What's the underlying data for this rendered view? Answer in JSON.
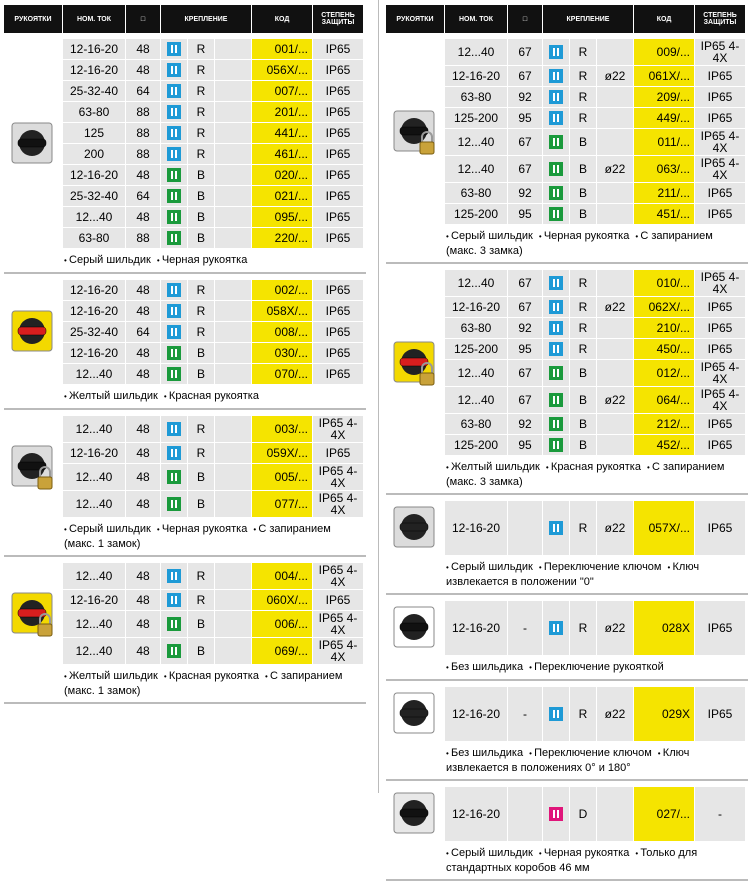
{
  "header": [
    "РУКОЯТКИ",
    "НОМ. ТОК",
    "□",
    "КРЕПЛЕНИЕ",
    "КОД",
    "СТЕПЕНЬ ЗАЩИТЫ"
  ],
  "columns": [
    [
      {
        "plate": "#dcdcdc",
        "handle": "#111111",
        "lock": false,
        "notes": [
          "Серый шильдик",
          "Черная рукоятка"
        ],
        "rows": [
          {
            "current": "12-16-20",
            "size": "48",
            "icon": "#1e9ad6",
            "mount": "R",
            "code": "001/...",
            "protection": "IP65"
          },
          {
            "current": "12-16-20",
            "size": "48",
            "icon": "#1e9ad6",
            "mount": "R",
            "code": "056X/...",
            "protection": "IP65"
          },
          {
            "current": "25-32-40",
            "size": "64",
            "icon": "#1e9ad6",
            "mount": "R",
            "code": "007/...",
            "protection": "IP65"
          },
          {
            "current": "63-80",
            "size": "88",
            "icon": "#1e9ad6",
            "mount": "R",
            "code": "201/...",
            "protection": "IP65"
          },
          {
            "current": "125",
            "size": "88",
            "icon": "#1e9ad6",
            "mount": "R",
            "code": "441/...",
            "protection": "IP65"
          },
          {
            "current": "200",
            "size": "88",
            "icon": "#1e9ad6",
            "mount": "R",
            "code": "461/...",
            "protection": "IP65"
          },
          {
            "current": "12-16-20",
            "size": "48",
            "icon": "#1a9a3c",
            "mount": "B",
            "code": "020/...",
            "protection": "IP65"
          },
          {
            "current": "25-32-40",
            "size": "64",
            "icon": "#1a9a3c",
            "mount": "B",
            "code": "021/...",
            "protection": "IP65"
          },
          {
            "current": "12...40",
            "size": "48",
            "icon": "#1a9a3c",
            "mount": "B",
            "code": "095/...",
            "protection": "IP65"
          },
          {
            "current": "63-80",
            "size": "88",
            "icon": "#1a9a3c",
            "mount": "B",
            "code": "220/...",
            "protection": "IP65"
          }
        ]
      },
      {
        "plate": "#f3d900",
        "handle": "#d81e1e",
        "lock": false,
        "notes": [
          "Желтый шильдик",
          "Красная рукоятка"
        ],
        "rows": [
          {
            "current": "12-16-20",
            "size": "48",
            "icon": "#1e9ad6",
            "mount": "R",
            "code": "002/...",
            "protection": "IP65"
          },
          {
            "current": "12-16-20",
            "size": "48",
            "icon": "#1e9ad6",
            "mount": "R",
            "code": "058X/...",
            "protection": "IP65"
          },
          {
            "current": "25-32-40",
            "size": "64",
            "icon": "#1e9ad6",
            "mount": "R",
            "code": "008/...",
            "protection": "IP65"
          },
          {
            "current": "12-16-20",
            "size": "48",
            "icon": "#1a9a3c",
            "mount": "B",
            "code": "030/...",
            "protection": "IP65"
          },
          {
            "current": "12...40",
            "size": "48",
            "icon": "#1a9a3c",
            "mount": "B",
            "code": "070/...",
            "protection": "IP65"
          }
        ]
      },
      {
        "plate": "#dcdcdc",
        "handle": "#111111",
        "lock": true,
        "notes": [
          "Серый шильдик",
          "Черная рукоятка",
          "С запиранием (макс. 1 замок)"
        ],
        "rows": [
          {
            "current": "12...40",
            "size": "48",
            "icon": "#1e9ad6",
            "mount": "R",
            "code": "003/...",
            "protection": "IP65 4-4X"
          },
          {
            "current": "12-16-20",
            "size": "48",
            "icon": "#1e9ad6",
            "mount": "R",
            "code": "059X/...",
            "protection": "IP65"
          },
          {
            "current": "12...40",
            "size": "48",
            "icon": "#1a9a3c",
            "mount": "B",
            "code": "005/...",
            "protection": "IP65 4-4X"
          },
          {
            "current": "12...40",
            "size": "48",
            "icon": "#1a9a3c",
            "mount": "B",
            "code": "077/...",
            "protection": "IP65 4-4X"
          }
        ]
      },
      {
        "plate": "#f3d900",
        "handle": "#d81e1e",
        "lock": true,
        "notes": [
          "Желтый шильдик",
          "Красная рукоятка",
          "С запиранием (макс. 1 замок)"
        ],
        "rows": [
          {
            "current": "12...40",
            "size": "48",
            "icon": "#1e9ad6",
            "mount": "R",
            "code": "004/...",
            "protection": "IP65 4-4X"
          },
          {
            "current": "12-16-20",
            "size": "48",
            "icon": "#1e9ad6",
            "mount": "R",
            "code": "060X/...",
            "protection": "IP65"
          },
          {
            "current": "12...40",
            "size": "48",
            "icon": "#1a9a3c",
            "mount": "B",
            "code": "006/...",
            "protection": "IP65 4-4X"
          },
          {
            "current": "12...40",
            "size": "48",
            "icon": "#1a9a3c",
            "mount": "B",
            "code": "069/...",
            "protection": "IP65 4-4X"
          }
        ]
      }
    ],
    [
      {
        "plate": "#dcdcdc",
        "handle": "#111111",
        "lock": true,
        "notes": [
          "Серый шильдик",
          "Черная рукоятка",
          "С запиранием (макс. 3 замка)"
        ],
        "rows": [
          {
            "current": "12...40",
            "size": "67",
            "icon": "#1e9ad6",
            "mount": "R",
            "code": "009/...",
            "protection": "IP65 4-4X"
          },
          {
            "current": "12-16-20",
            "size": "67",
            "icon": "#1e9ad6",
            "mount": "R",
            "extra": "ø22",
            "code": "061X/...",
            "protection": "IP65"
          },
          {
            "current": "63-80",
            "size": "92",
            "icon": "#1e9ad6",
            "mount": "R",
            "code": "209/...",
            "protection": "IP65"
          },
          {
            "current": "125-200",
            "size": "95",
            "icon": "#1e9ad6",
            "mount": "R",
            "code": "449/...",
            "protection": "IP65"
          },
          {
            "current": "12...40",
            "size": "67",
            "icon": "#1a9a3c",
            "mount": "B",
            "code": "011/...",
            "protection": "IP65 4-4X"
          },
          {
            "current": "12...40",
            "size": "67",
            "icon": "#1a9a3c",
            "mount": "B",
            "extra": "ø22",
            "code": "063/...",
            "protection": "IP65 4-4X"
          },
          {
            "current": "63-80",
            "size": "92",
            "icon": "#1a9a3c",
            "mount": "B",
            "code": "211/...",
            "protection": "IP65"
          },
          {
            "current": "125-200",
            "size": "95",
            "icon": "#1a9a3c",
            "mount": "B",
            "code": "451/...",
            "protection": "IP65"
          }
        ]
      },
      {
        "plate": "#f3d900",
        "handle": "#d81e1e",
        "lock": true,
        "notes": [
          "Желтый шильдик",
          "Красная рукоятка",
          "С запиранием (макс. 3 замка)"
        ],
        "rows": [
          {
            "current": "12...40",
            "size": "67",
            "icon": "#1e9ad6",
            "mount": "R",
            "code": "010/...",
            "protection": "IP65 4-4X"
          },
          {
            "current": "12-16-20",
            "size": "67",
            "icon": "#1e9ad6",
            "mount": "R",
            "extra": "ø22",
            "code": "062X/...",
            "protection": "IP65"
          },
          {
            "current": "63-80",
            "size": "92",
            "icon": "#1e9ad6",
            "mount": "R",
            "code": "210/...",
            "protection": "IP65"
          },
          {
            "current": "125-200",
            "size": "95",
            "icon": "#1e9ad6",
            "mount": "R",
            "code": "450/...",
            "protection": "IP65"
          },
          {
            "current": "12...40",
            "size": "67",
            "icon": "#1a9a3c",
            "mount": "B",
            "code": "012/...",
            "protection": "IP65 4-4X"
          },
          {
            "current": "12...40",
            "size": "67",
            "icon": "#1a9a3c",
            "mount": "B",
            "extra": "ø22",
            "code": "064/...",
            "protection": "IP65 4-4X"
          },
          {
            "current": "63-80",
            "size": "92",
            "icon": "#1a9a3c",
            "mount": "B",
            "code": "212/...",
            "protection": "IP65"
          },
          {
            "current": "125-200",
            "size": "95",
            "icon": "#1a9a3c",
            "mount": "B",
            "code": "452/...",
            "protection": "IP65"
          }
        ]
      },
      {
        "plate": "#dcdcdc",
        "handle": "#222222",
        "lock": false,
        "notes": [
          "Серый шильдик",
          "Переключение ключом",
          "Ключ извлекается в положении \"0\""
        ],
        "rows": [
          {
            "current": "12-16-20",
            "icon": "#1e9ad6",
            "mount": "R",
            "extra": "ø22",
            "code": "057X/...",
            "protection": "IP65"
          }
        ]
      },
      {
        "plate": "#ffffff",
        "handle": "#111111",
        "lock": false,
        "notes": [
          "Без шильдика",
          "Переключение рукояткой"
        ],
        "rows": [
          {
            "current": "12-16-20",
            "size": "-",
            "icon": "#1e9ad6",
            "mount": "R",
            "extra": "ø22",
            "code": "028X",
            "protection": "IP65"
          }
        ]
      },
      {
        "plate": "#ffffff",
        "handle": "#222222",
        "lock": false,
        "notes": [
          "Без шильдика",
          "Переключение ключом",
          "Ключ извлекается в положениях 0° и 180°"
        ],
        "rows": [
          {
            "current": "12-16-20",
            "size": "-",
            "icon": "#1e9ad6",
            "mount": "R",
            "extra": "ø22",
            "code": "029X",
            "protection": "IP65"
          }
        ]
      },
      {
        "plate": "#e8e8e8",
        "handle": "#111111",
        "lock": false,
        "notes": [
          "Серый шильдик",
          "Черная рукоятка",
          "Только для стандартных коробов 46 мм"
        ],
        "rows": [
          {
            "current": "12-16-20",
            "icon": "#e0157a",
            "mount": "D",
            "code": "027/...",
            "protection": "-"
          }
        ]
      }
    ]
  ]
}
